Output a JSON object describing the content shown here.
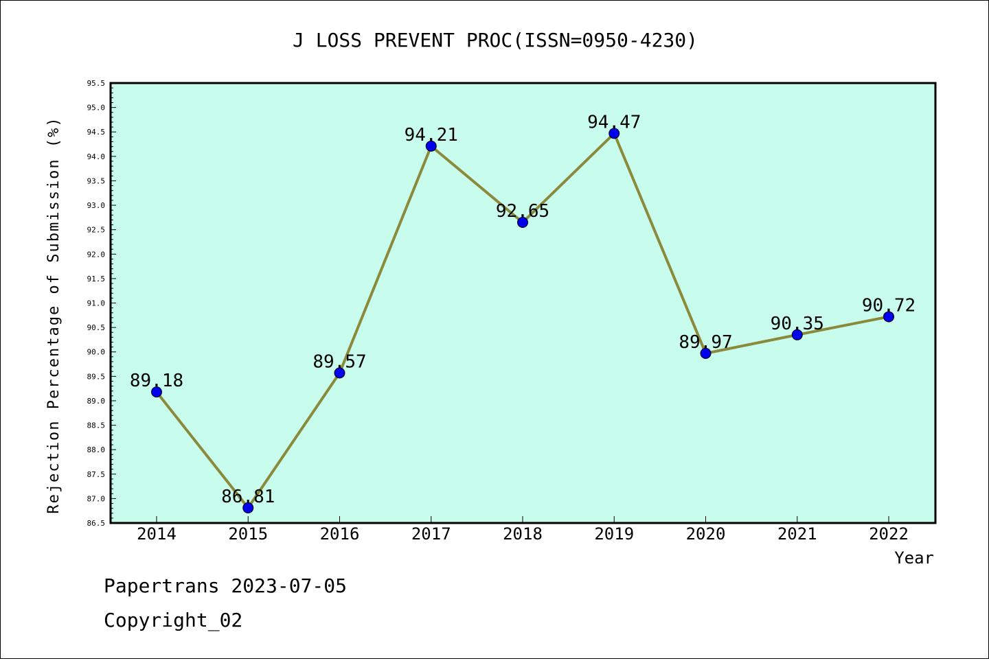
{
  "chart_data": {
    "type": "line",
    "title": "J LOSS PREVENT PROC(ISSN=0950-4230)",
    "xlabel": "Year",
    "ylabel": "Rejection Percentage of Submission (%)",
    "categories": [
      "2014",
      "2015",
      "2016",
      "2017",
      "2018",
      "2019",
      "2020",
      "2021",
      "2022"
    ],
    "series": [
      {
        "values": [
          89.18,
          86.81,
          89.57,
          94.21,
          92.65,
          94.47,
          89.97,
          90.35,
          90.72
        ],
        "labels": [
          "89.18",
          "86.81",
          "89.57",
          "94.21",
          "92.65",
          "94.47",
          "89.97",
          "90.35",
          "90.72"
        ]
      }
    ],
    "ylim": [
      86.5,
      95.5
    ],
    "yticks": [
      "86.5",
      "87.0",
      "87.5",
      "88.0",
      "88.5",
      "89.0",
      "89.5",
      "90.0",
      "90.5",
      "91.0",
      "91.5",
      "92.0",
      "92.5",
      "93.0",
      "93.5",
      "94.0",
      "94.5",
      "95.0",
      "95.5"
    ],
    "grid": false,
    "colors": {
      "plot_background": "#c8fced",
      "line": "#8b8a3c",
      "marker": "#0000ee"
    }
  },
  "footer": {
    "line1": "Papertrans 2023-07-05",
    "line2": "Copyright_02"
  }
}
